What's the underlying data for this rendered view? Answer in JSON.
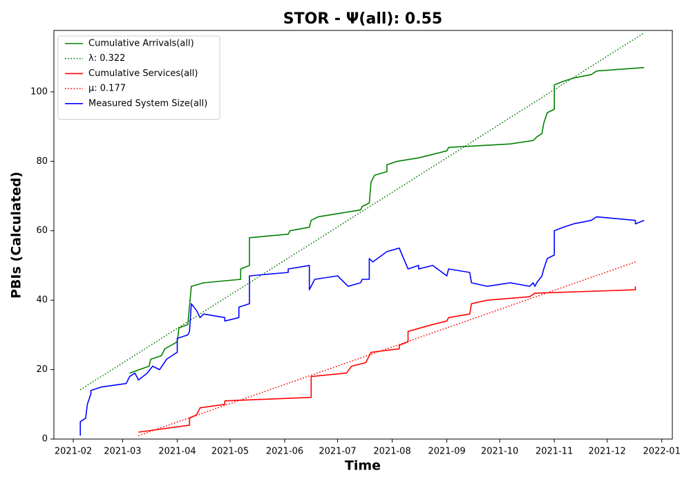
{
  "chart_data": {
    "type": "line",
    "title": "STOR -  Ψ(all): 0.55",
    "xlabel": "Time",
    "ylabel": "PBIs (Calculated)",
    "xlim": [
      "2021-01-21",
      "2022-01-07"
    ],
    "ylim": [
      0,
      117.7
    ],
    "xticks": [
      {
        "value": "2021-02-01",
        "label": "2021-02"
      },
      {
        "value": "2021-03-01",
        "label": "2021-03"
      },
      {
        "value": "2021-04-01",
        "label": "2021-04"
      },
      {
        "value": "2021-05-01",
        "label": "2021-05"
      },
      {
        "value": "2021-06-01",
        "label": "2021-06"
      },
      {
        "value": "2021-07-01",
        "label": "2021-07"
      },
      {
        "value": "2021-08-01",
        "label": "2021-08"
      },
      {
        "value": "2021-09-01",
        "label": "2021-09"
      },
      {
        "value": "2021-10-01",
        "label": "2021-10"
      },
      {
        "value": "2021-11-01",
        "label": "2021-11"
      },
      {
        "value": "2021-12-01",
        "label": "2021-12"
      },
      {
        "value": "2022-01-01",
        "label": "2022-01"
      }
    ],
    "yticks": [
      0,
      20,
      40,
      60,
      80,
      100
    ],
    "legend": "upper left",
    "series": [
      {
        "name": "Cumulative Arrivals(all)",
        "color": "#008000",
        "style": "solid",
        "x": [
          "2021-03-05",
          "2021-03-16",
          "2021-03-17",
          "2021-03-23",
          "2021-03-25",
          "2021-04-01",
          "2021-04-02",
          "2021-04-07",
          "2021-04-09",
          "2021-04-16",
          "2021-05-07",
          "2021-05-07",
          "2021-05-12",
          "2021-05-12",
          "2021-06-03",
          "2021-06-04",
          "2021-06-15",
          "2021-06-16",
          "2021-06-20",
          "2021-07-14",
          "2021-07-15",
          "2021-07-19",
          "2021-07-20",
          "2021-07-22",
          "2021-07-29",
          "2021-07-29",
          "2021-08-04",
          "2021-08-16",
          "2021-08-24",
          "2021-09-01",
          "2021-09-02",
          "2021-10-07",
          "2021-10-20",
          "2021-10-22",
          "2021-10-25",
          "2021-10-26",
          "2021-10-28",
          "2021-11-01",
          "2021-11-01",
          "2021-11-06",
          "2021-11-12",
          "2021-11-22",
          "2021-11-25",
          "2021-12-22"
        ],
        "values": [
          19,
          21,
          23,
          24,
          26,
          28,
          32,
          33,
          44,
          45,
          46,
          49,
          50,
          58,
          59,
          60,
          61,
          63,
          64,
          66,
          67,
          68,
          74,
          76,
          77,
          79,
          80,
          81,
          82,
          83,
          84,
          85,
          86,
          87,
          88,
          91,
          94,
          95,
          102,
          103,
          104,
          105,
          106,
          107
        ]
      },
      {
        "name": "λ: 0.322",
        "color": "#008000",
        "style": "dotted",
        "x": [
          "2021-02-05",
          "2021-12-22"
        ],
        "values": [
          14.2,
          117
        ]
      },
      {
        "name": "Cumulative Services(all)",
        "color": "#ff0000",
        "style": "solid",
        "x": [
          "2021-03-10",
          "2021-04-08",
          "2021-04-08",
          "2021-04-12",
          "2021-04-14",
          "2021-04-28",
          "2021-04-28",
          "2021-06-16",
          "2021-06-16",
          "2021-07-06",
          "2021-07-09",
          "2021-07-17",
          "2021-07-19",
          "2021-07-20",
          "2021-08-05",
          "2021-08-05",
          "2021-08-10",
          "2021-08-10",
          "2021-08-24",
          "2021-09-01",
          "2021-09-02",
          "2021-09-14",
          "2021-09-15",
          "2021-09-24",
          "2021-10-18",
          "2021-10-21",
          "2021-12-17",
          "2021-12-17"
        ],
        "values": [
          2,
          4,
          6,
          7,
          9,
          10,
          11,
          12,
          18,
          19,
          21,
          22,
          24,
          25,
          26,
          27,
          28,
          31,
          33,
          34,
          35,
          36,
          39,
          40,
          41,
          42,
          43,
          44
        ]
      },
      {
        "name": "μ: 0.177",
        "color": "#ff0000",
        "style": "dotted",
        "x": [
          "2021-03-10",
          "2021-12-17"
        ],
        "values": [
          1,
          51
        ]
      },
      {
        "name": "Measured System Size(all)",
        "color": "#0000ff",
        "style": "solid",
        "x": [
          "2021-02-05",
          "2021-02-05",
          "2021-02-08",
          "2021-02-09",
          "2021-02-11",
          "2021-02-11",
          "2021-02-17",
          "2021-03-03",
          "2021-03-05",
          "2021-03-08",
          "2021-03-10",
          "2021-03-15",
          "2021-03-18",
          "2021-03-22",
          "2021-03-26",
          "2021-04-01",
          "2021-04-01",
          "2021-04-07",
          "2021-04-08",
          "2021-04-09",
          "2021-04-12",
          "2021-04-14",
          "2021-04-16",
          "2021-04-28",
          "2021-04-28",
          "2021-05-06",
          "2021-05-06",
          "2021-05-12",
          "2021-05-12",
          "2021-06-03",
          "2021-06-03",
          "2021-06-15",
          "2021-06-15",
          "2021-06-18",
          "2021-07-01",
          "2021-07-07",
          "2021-07-14",
          "2021-07-15",
          "2021-07-19",
          "2021-07-19",
          "2021-07-21",
          "2021-07-29",
          "2021-08-05",
          "2021-08-10",
          "2021-08-16",
          "2021-08-16",
          "2021-08-24",
          "2021-09-01",
          "2021-09-02",
          "2021-09-14",
          "2021-09-15",
          "2021-09-24",
          "2021-10-07",
          "2021-10-18",
          "2021-10-20",
          "2021-10-21",
          "2021-10-22",
          "2021-10-25",
          "2021-10-26",
          "2021-10-28",
          "2021-11-01",
          "2021-11-01",
          "2021-11-06",
          "2021-11-12",
          "2021-11-22",
          "2021-11-25",
          "2021-12-17",
          "2021-12-17",
          "2021-12-22"
        ],
        "values": [
          1,
          5,
          6,
          10,
          13,
          14,
          15,
          16,
          18,
          19,
          17,
          19,
          21,
          20,
          23,
          25,
          29,
          30,
          31,
          39,
          37,
          35,
          36,
          35,
          34,
          35,
          38,
          39,
          47,
          48,
          49,
          50,
          43,
          46,
          47,
          44,
          45,
          46,
          46,
          52,
          51,
          54,
          55,
          49,
          50,
          49,
          50,
          47,
          49,
          48,
          45,
          44,
          45,
          44,
          45,
          44,
          45,
          47,
          49,
          52,
          53,
          60,
          61,
          62,
          63,
          64,
          63,
          62,
          63
        ]
      }
    ]
  }
}
